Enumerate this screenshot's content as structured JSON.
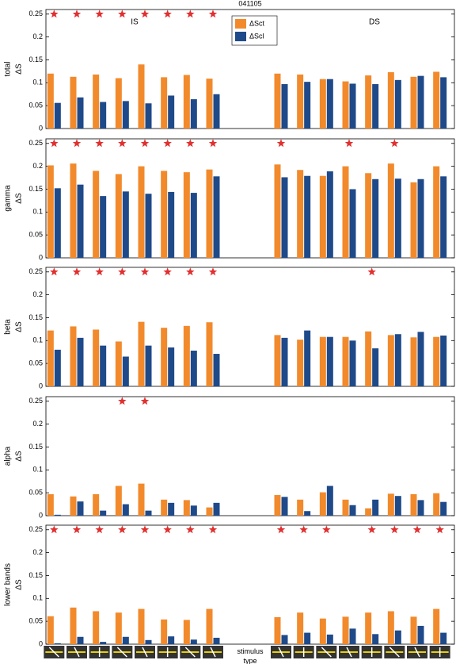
{
  "chart_data": [
    {
      "type": "bar",
      "title": "041105",
      "panel_label": "total",
      "ylabel": "ΔS",
      "annotations": [
        "IS",
        "DS"
      ],
      "categories": [
        null,
        null,
        null,
        null,
        null,
        null,
        null,
        null,
        null,
        null,
        null,
        null,
        null,
        null,
        null,
        null,
        null,
        null
      ],
      "series": [
        {
          "name": "ΔSct",
          "color": "#f28a2c",
          "values": [
            0.12,
            0.113,
            0.118,
            0.11,
            0.14,
            0.112,
            0.117,
            0.109,
            null,
            null,
            0.12,
            0.118,
            0.108,
            0.103,
            0.116,
            0.123,
            0.113,
            0.124
          ]
        },
        {
          "name": "ΔScl",
          "color": "#1f4a8a",
          "values": [
            0.056,
            0.068,
            0.058,
            0.06,
            0.055,
            0.072,
            0.064,
            0.075,
            null,
            null,
            0.097,
            0.102,
            0.108,
            0.098,
            0.097,
            0.106,
            0.115,
            0.112
          ]
        }
      ],
      "significant": [
        true,
        true,
        true,
        true,
        true,
        true,
        true,
        true,
        false,
        false,
        false,
        false,
        false,
        false,
        false,
        false,
        false,
        false
      ],
      "marker_y": 0.25,
      "ylim": [
        0,
        0.26
      ],
      "yticks": [
        0,
        0.05,
        0.1,
        0.15,
        0.2,
        0.25
      ]
    },
    {
      "type": "bar",
      "panel_label": "gamma",
      "ylabel": "ΔS",
      "categories": [
        null,
        null,
        null,
        null,
        null,
        null,
        null,
        null,
        null,
        null,
        null,
        null,
        null,
        null,
        null,
        null,
        null,
        null
      ],
      "series": [
        {
          "name": "ΔSct",
          "color": "#f28a2c",
          "values": [
            0.202,
            0.206,
            0.19,
            0.183,
            0.2,
            0.19,
            0.187,
            0.193,
            null,
            null,
            0.204,
            0.192,
            0.179,
            0.2,
            0.185,
            0.206,
            0.165,
            0.2
          ]
        },
        {
          "name": "ΔScl",
          "color": "#1f4a8a",
          "values": [
            0.152,
            0.16,
            0.135,
            0.145,
            0.14,
            0.144,
            0.142,
            0.178,
            null,
            null,
            0.176,
            0.179,
            0.189,
            0.15,
            0.172,
            0.173,
            0.172,
            0.178
          ]
        }
      ],
      "significant": [
        true,
        true,
        true,
        true,
        true,
        true,
        true,
        true,
        false,
        false,
        true,
        false,
        false,
        true,
        false,
        true,
        false,
        false
      ],
      "marker_y": 0.25,
      "ylim": [
        0,
        0.26
      ],
      "yticks": [
        0,
        0.05,
        0.1,
        0.15,
        0.2,
        0.25
      ]
    },
    {
      "type": "bar",
      "panel_label": "beta",
      "ylabel": "ΔS",
      "categories": [
        null,
        null,
        null,
        null,
        null,
        null,
        null,
        null,
        null,
        null,
        null,
        null,
        null,
        null,
        null,
        null,
        null,
        null
      ],
      "series": [
        {
          "name": "ΔSct",
          "color": "#f28a2c",
          "values": [
            0.122,
            0.131,
            0.124,
            0.098,
            0.141,
            0.128,
            0.132,
            0.14,
            null,
            null,
            0.112,
            0.102,
            0.108,
            0.108,
            0.12,
            0.112,
            0.107,
            0.108
          ]
        },
        {
          "name": "ΔScl",
          "color": "#1f4a8a",
          "values": [
            0.08,
            0.106,
            0.089,
            0.065,
            0.089,
            0.085,
            0.078,
            0.071,
            null,
            null,
            0.106,
            0.122,
            0.108,
            0.1,
            0.083,
            0.114,
            0.119,
            0.111
          ]
        }
      ],
      "significant": [
        true,
        true,
        true,
        true,
        true,
        true,
        true,
        true,
        false,
        false,
        false,
        false,
        false,
        false,
        true,
        false,
        false,
        false
      ],
      "marker_y": 0.25,
      "ylim": [
        0,
        0.26
      ],
      "yticks": [
        0,
        0.05,
        0.1,
        0.15,
        0.2,
        0.25
      ]
    },
    {
      "type": "bar",
      "panel_label": "alpha",
      "ylabel": "ΔS",
      "categories": [
        null,
        null,
        null,
        null,
        null,
        null,
        null,
        null,
        null,
        null,
        null,
        null,
        null,
        null,
        null,
        null,
        null,
        null
      ],
      "series": [
        {
          "name": "ΔSct",
          "color": "#f28a2c",
          "values": [
            0.047,
            0.042,
            0.047,
            0.065,
            0.07,
            0.035,
            0.034,
            0.018,
            null,
            null,
            0.045,
            0.035,
            0.051,
            0.035,
            0.016,
            0.048,
            0.047,
            0.049
          ]
        },
        {
          "name": "ΔScl",
          "color": "#1f4a8a",
          "values": [
            0.002,
            0.031,
            0.011,
            0.025,
            0.011,
            0.028,
            0.022,
            0.028,
            null,
            null,
            0.041,
            0.01,
            0.065,
            0.023,
            0.035,
            0.043,
            0.034,
            0.03
          ]
        }
      ],
      "significant": [
        false,
        false,
        false,
        true,
        true,
        false,
        false,
        false,
        false,
        false,
        false,
        false,
        false,
        false,
        false,
        false,
        false,
        false
      ],
      "marker_y": 0.25,
      "ylim": [
        0,
        0.26
      ],
      "yticks": [
        0,
        0.05,
        0.1,
        0.15,
        0.2,
        0.25
      ]
    },
    {
      "type": "bar",
      "panel_label": "lower bands",
      "ylabel": "ΔS",
      "xlabel": "stimulus type",
      "categories": [
        null,
        null,
        null,
        null,
        null,
        null,
        null,
        null,
        null,
        null,
        null,
        null,
        null,
        null,
        null,
        null,
        null,
        null
      ],
      "series": [
        {
          "name": "ΔSct",
          "color": "#f28a2c",
          "values": [
            0.061,
            0.08,
            0.072,
            0.069,
            0.077,
            0.054,
            0.053,
            0.077,
            null,
            null,
            0.059,
            0.069,
            0.056,
            0.06,
            0.069,
            0.072,
            0.06,
            0.077
          ]
        },
        {
          "name": "ΔScl",
          "color": "#1f4a8a",
          "values": [
            0.002,
            0.016,
            0.005,
            0.016,
            0.009,
            0.017,
            0.01,
            0.014,
            null,
            null,
            0.02,
            0.025,
            0.021,
            0.034,
            0.022,
            0.03,
            0.04,
            0.025
          ]
        }
      ],
      "significant": [
        true,
        true,
        true,
        true,
        true,
        true,
        true,
        true,
        false,
        false,
        true,
        true,
        true,
        false,
        true,
        true,
        true,
        true
      ],
      "marker_y": 0.25,
      "ylim": [
        0,
        0.26
      ],
      "yticks": [
        0,
        0.05,
        0.1,
        0.15,
        0.2,
        0.25
      ]
    }
  ]
}
